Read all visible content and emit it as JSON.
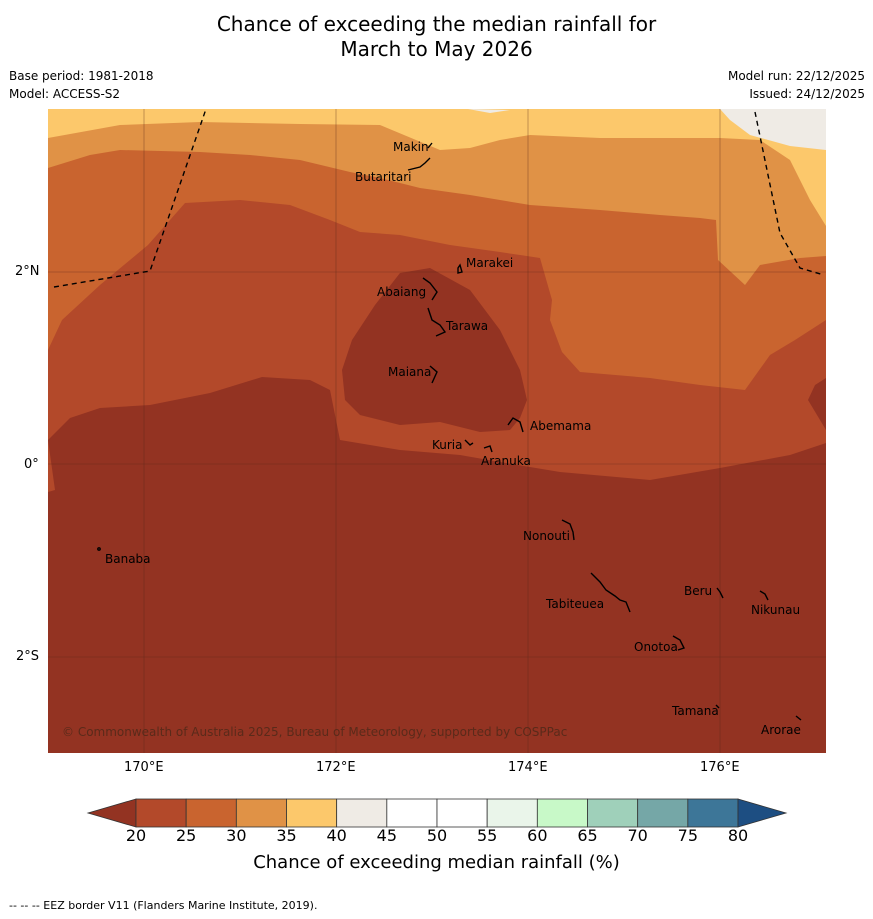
{
  "title": {
    "line1": "Chance of exceeding the median rainfall for",
    "line2": "March to May 2026"
  },
  "meta": {
    "base_period": "Base period: 1981-2018",
    "model": "Model: ACCESS-S2",
    "model_run": "Model run: 22/12/2025",
    "issued": "Issued: 24/12/2025"
  },
  "axes": {
    "x_ticks": [
      "170°E",
      "172°E",
      "174°E",
      "176°E"
    ],
    "y_ticks": [
      "2°N",
      "0°",
      "2°S"
    ]
  },
  "places": [
    {
      "name": "Makin"
    },
    {
      "name": "Butaritari"
    },
    {
      "name": "Marakei"
    },
    {
      "name": "Abaiang"
    },
    {
      "name": "Tarawa"
    },
    {
      "name": "Maiana"
    },
    {
      "name": "Abemama"
    },
    {
      "name": "Kuria"
    },
    {
      "name": "Aranuka"
    },
    {
      "name": "Nonouti"
    },
    {
      "name": "Banaba"
    },
    {
      "name": "Tabiteuea"
    },
    {
      "name": "Beru"
    },
    {
      "name": "Nikunau"
    },
    {
      "name": "Onotoa"
    },
    {
      "name": "Tamana"
    },
    {
      "name": "Arorae"
    }
  ],
  "copyright": "© Commonwealth of Australia 2025, Bureau of Meteorology, supported by COSPPac",
  "colorbar": {
    "labels": [
      "20",
      "25",
      "30",
      "35",
      "40",
      "45",
      "50",
      "55",
      "60",
      "65",
      "70",
      "75",
      "80"
    ],
    "colors": [
      "#b3492a",
      "#c9642f",
      "#e09246",
      "#fcc86b",
      "#efebe5",
      "#ffffff",
      "#ffffff",
      "#eaf5ea",
      "#c8f9c8",
      "#9fd0ba",
      "#75a7a7",
      "#3d7698"
    ],
    "under_color": "#933322",
    "over_color": "#1d4e82",
    "title": "Chance of exceeding median rainfall (%)"
  },
  "footer": "--  --  -- EEZ border V11 (Flanders Marine Institute, 2019)."
}
